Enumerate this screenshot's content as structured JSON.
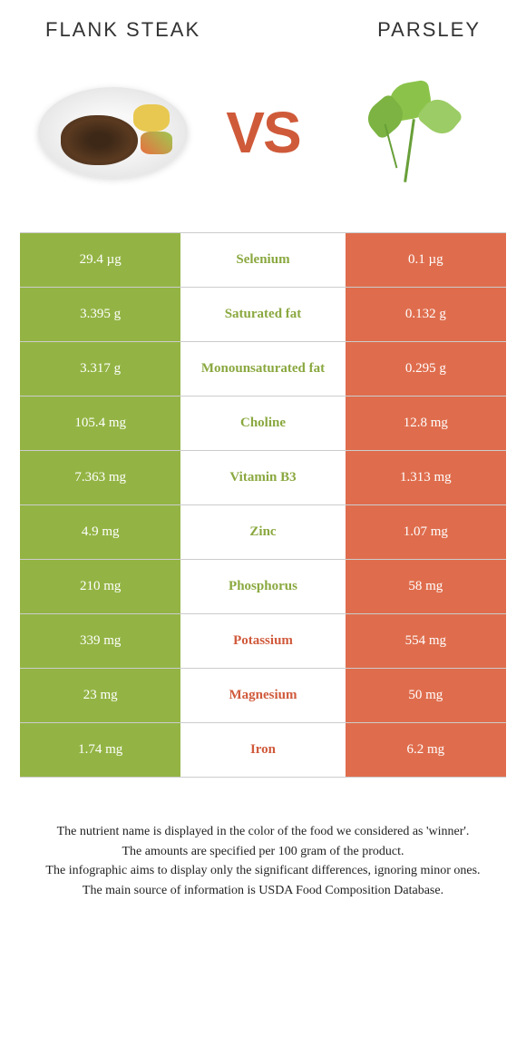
{
  "header": {
    "left_title": "Flank Steak",
    "right_title": "Parsley",
    "vs_text": "VS"
  },
  "colors": {
    "steak": "#93b444",
    "parsley": "#df6d4d",
    "steak_text": "#8aa83f",
    "parsley_text": "#d05a3c",
    "row_border": "#cccccc"
  },
  "nutrients": [
    {
      "name": "Selenium",
      "left": "29.4 µg",
      "right": "0.1 µg",
      "winner": "left"
    },
    {
      "name": "Saturated fat",
      "left": "3.395 g",
      "right": "0.132 g",
      "winner": "left"
    },
    {
      "name": "Monounsaturated fat",
      "left": "3.317 g",
      "right": "0.295 g",
      "winner": "left"
    },
    {
      "name": "Choline",
      "left": "105.4 mg",
      "right": "12.8 mg",
      "winner": "left"
    },
    {
      "name": "Vitamin B3",
      "left": "7.363 mg",
      "right": "1.313 mg",
      "winner": "left"
    },
    {
      "name": "Zinc",
      "left": "4.9 mg",
      "right": "1.07 mg",
      "winner": "left"
    },
    {
      "name": "Phosphorus",
      "left": "210 mg",
      "right": "58 mg",
      "winner": "left"
    },
    {
      "name": "Potassium",
      "left": "339 mg",
      "right": "554 mg",
      "winner": "right"
    },
    {
      "name": "Magnesium",
      "left": "23 mg",
      "right": "50 mg",
      "winner": "right"
    },
    {
      "name": "Iron",
      "left": "1.74 mg",
      "right": "6.2 mg",
      "winner": "right"
    }
  ],
  "footer": {
    "line1": "The nutrient name is displayed in the color of the food we considered as 'winner'.",
    "line2": "The amounts are specified per 100 gram of the product.",
    "line3": "The infographic aims to display only the significant differences, ignoring minor ones.",
    "line4": "The main source of information is USDA Food Composition Database."
  }
}
